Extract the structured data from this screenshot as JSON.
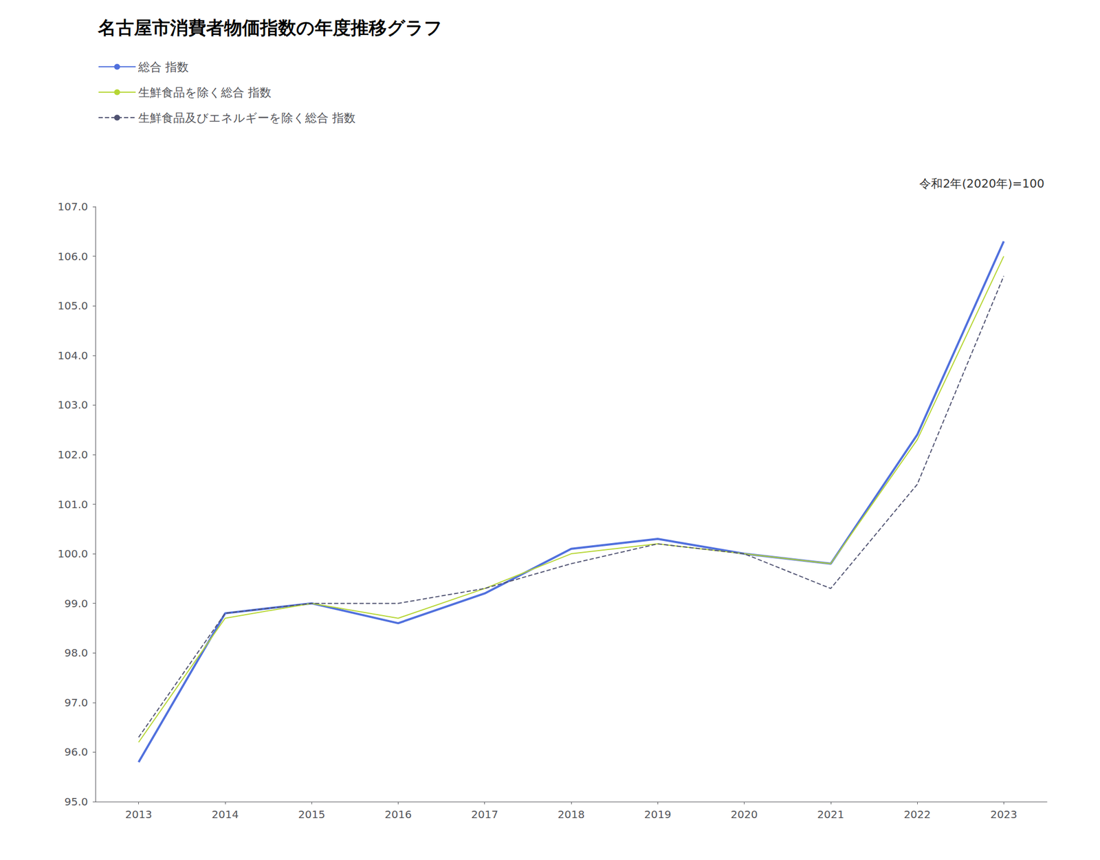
{
  "chart_data": {
    "type": "line",
    "title": "名古屋市消費者物価指数の年度推移グラフ",
    "subtitle": "令和2年(2020年)=100",
    "x": [
      2013,
      2014,
      2015,
      2016,
      2017,
      2018,
      2019,
      2020,
      2021,
      2022,
      2023
    ],
    "series": [
      {
        "name": "総合 指数",
        "line_style": "solid",
        "values": [
          95.8,
          98.8,
          99.0,
          98.6,
          99.2,
          100.1,
          100.3,
          100.0,
          99.8,
          102.4,
          106.3
        ]
      },
      {
        "name": "生鮮食品を除く総合 指数",
        "line_style": "solid",
        "values": [
          96.2,
          98.7,
          99.0,
          98.7,
          99.3,
          100.0,
          100.2,
          100.0,
          99.8,
          102.3,
          106.0
        ]
      },
      {
        "name": "生鮮食品及びエネルギーを除く総合 指数",
        "line_style": "dashed",
        "values": [
          96.3,
          98.8,
          99.0,
          99.0,
          99.3,
          99.8,
          100.2,
          100.0,
          99.3,
          101.4,
          105.6
        ]
      }
    ],
    "xlim": [
      2012.5,
      2023.5
    ],
    "xticks": [
      2013,
      2014,
      2015,
      2016,
      2017,
      2018,
      2019,
      2020,
      2021,
      2022,
      2023
    ],
    "ylim": [
      95.0,
      107.0
    ],
    "yticks": [
      {
        "value": 95,
        "label": "95.0"
      },
      {
        "value": 96,
        "label": "96.0"
      },
      {
        "value": 97,
        "label": "97.0"
      },
      {
        "value": 98,
        "label": "98.0"
      },
      {
        "value": 99,
        "label": "99.0"
      },
      {
        "value": 100,
        "label": "100.0"
      },
      {
        "value": 101,
        "label": "101.0"
      },
      {
        "value": 102,
        "label": "102.0"
      },
      {
        "value": 103,
        "label": "103.0"
      },
      {
        "value": 104,
        "label": "104.0"
      },
      {
        "value": 105,
        "label": "105.0"
      },
      {
        "value": 106,
        "label": "106.0"
      },
      {
        "value": 107,
        "label": "107.0"
      }
    ],
    "grid": false,
    "legend": "top-left"
  }
}
